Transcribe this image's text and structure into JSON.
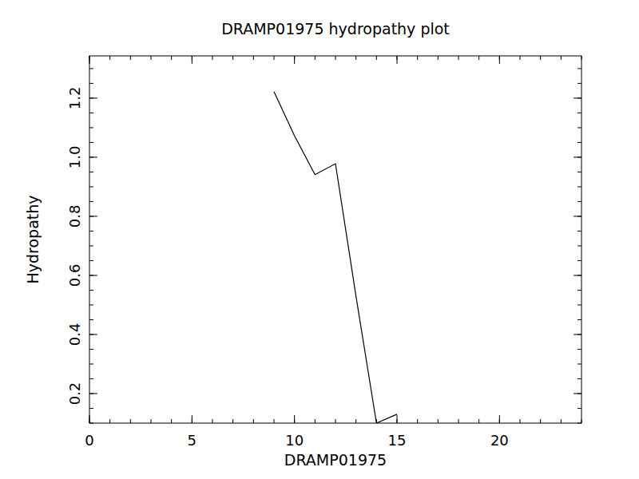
{
  "chart_data": {
    "type": "line",
    "title": "DRAMP01975 hydropathy plot",
    "x_label": "DRAMP01975",
    "y_label": "Hydropathy",
    "x": [
      9,
      10,
      11,
      12,
      13,
      14,
      15
    ],
    "values": [
      1.222,
      1.073,
      0.941,
      0.978,
      0.53,
      0.1,
      0.13
    ],
    "color": "#000000",
    "xlim": [
      0,
      24
    ],
    "xticks": [
      0,
      5,
      10,
      15,
      20
    ],
    "ylim": [
      0.1,
      1.343
    ],
    "yticks": [
      {
        "value": 0.2,
        "label": "0.2"
      },
      {
        "value": 0.4,
        "label": "0.4"
      },
      {
        "value": 0.6,
        "label": "0.6"
      },
      {
        "value": 0.8,
        "label": "0.8"
      },
      {
        "value": 1.0,
        "label": "1.0"
      },
      {
        "value": 1.2,
        "label": "1.2"
      }
    ],
    "grid": false
  }
}
